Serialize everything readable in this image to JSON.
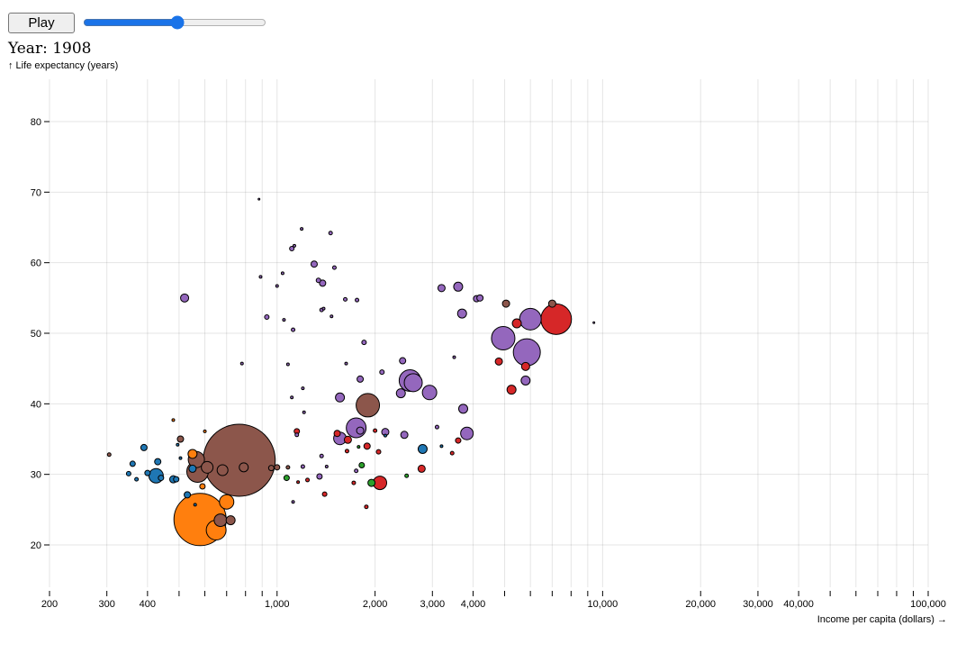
{
  "controls": {
    "play_label": "Play",
    "year_prefix": "Year: ",
    "year": 1908,
    "slider_min": 1800,
    "slider_max": 2009
  },
  "colors": {
    "region_1": "#1f77b4",
    "region_2": "#ff7f0e",
    "region_3": "#2ca02c",
    "region_4": "#d62728",
    "region_5": "#9467bd",
    "region_6": "#8c564b"
  },
  "chart_data": {
    "type": "scatter",
    "title": "",
    "xlabel": "Income per capita (dollars) →",
    "ylabel": "↑ Life expectancy (years)",
    "x_scale": "log",
    "xlim": [
      200,
      100000
    ],
    "ylim": [
      14,
      86
    ],
    "grid": true,
    "x_tick_labels": [
      {
        "value": 200,
        "label": "200"
      },
      {
        "value": 300,
        "label": "300"
      },
      {
        "value": 400,
        "label": "400"
      },
      {
        "value": 1000,
        "label": "1,000"
      },
      {
        "value": 2000,
        "label": "2,000"
      },
      {
        "value": 3000,
        "label": "3,000"
      },
      {
        "value": 4000,
        "label": "4,000"
      },
      {
        "value": 10000,
        "label": "10,000"
      },
      {
        "value": 20000,
        "label": "20,000"
      },
      {
        "value": 30000,
        "label": "30,000"
      },
      {
        "value": 40000,
        "label": "40,000"
      },
      {
        "value": 100000,
        "label": "100,000"
      }
    ],
    "y_tick_labels": [
      {
        "value": 20,
        "label": "20"
      },
      {
        "value": 30,
        "label": "30"
      },
      {
        "value": 40,
        "label": "40"
      },
      {
        "value": 50,
        "label": "50"
      },
      {
        "value": 60,
        "label": "60"
      },
      {
        "value": 70,
        "label": "70"
      },
      {
        "value": 80,
        "label": "80"
      }
    ],
    "points": [
      {
        "x": 765,
        "y": 32,
        "size": 40,
        "color": "#8c564b"
      },
      {
        "x": 580,
        "y": 23.6,
        "size": 29,
        "color": "#ff7f0e"
      },
      {
        "x": 7200,
        "y": 52,
        "size": 17,
        "color": "#d62728"
      },
      {
        "x": 5850,
        "y": 47.3,
        "size": 15,
        "color": "#9467bd"
      },
      {
        "x": 4950,
        "y": 49.3,
        "size": 13,
        "color": "#9467bd"
      },
      {
        "x": 1900,
        "y": 39.8,
        "size": 13,
        "color": "#8c564b"
      },
      {
        "x": 6000,
        "y": 52,
        "size": 12,
        "color": "#9467bd"
      },
      {
        "x": 2560,
        "y": 43.3,
        "size": 12,
        "color": "#9467bd"
      },
      {
        "x": 570,
        "y": 30.4,
        "size": 12,
        "color": "#8c564b"
      },
      {
        "x": 650,
        "y": 22.1,
        "size": 11,
        "color": "#ff7f0e"
      },
      {
        "x": 1750,
        "y": 36.6,
        "size": 11,
        "color": "#9467bd"
      },
      {
        "x": 2620,
        "y": 43,
        "size": 10,
        "color": "#9467bd"
      },
      {
        "x": 2940,
        "y": 41.6,
        "size": 8,
        "color": "#9467bd"
      },
      {
        "x": 565,
        "y": 32.1,
        "size": 9,
        "color": "#8c564b"
      },
      {
        "x": 700,
        "y": 26.1,
        "size": 8,
        "color": "#ff7f0e"
      },
      {
        "x": 425,
        "y": 29.8,
        "size": 8,
        "color": "#1f77b4"
      },
      {
        "x": 2070,
        "y": 28.8,
        "size": 7.5,
        "color": "#d62728"
      },
      {
        "x": 1560,
        "y": 35.1,
        "size": 7,
        "color": "#9467bd"
      },
      {
        "x": 3830,
        "y": 35.8,
        "size": 7,
        "color": "#9467bd"
      },
      {
        "x": 610,
        "y": 31,
        "size": 6.5,
        "color": "#8c564b"
      },
      {
        "x": 670,
        "y": 23.5,
        "size": 7,
        "color": "#8c564b"
      },
      {
        "x": 3700,
        "y": 52.8,
        "size": 5,
        "color": "#9467bd"
      },
      {
        "x": 4800,
        "y": 46,
        "size": 4,
        "color": "#d62728"
      },
      {
        "x": 680,
        "y": 30.6,
        "size": 6,
        "color": "#8c564b"
      },
      {
        "x": 5450,
        "y": 51.4,
        "size": 5,
        "color": "#d62728"
      },
      {
        "x": 5800,
        "y": 43.3,
        "size": 5,
        "color": "#9467bd"
      },
      {
        "x": 3730,
        "y": 39.3,
        "size": 5,
        "color": "#9467bd"
      },
      {
        "x": 1560,
        "y": 40.9,
        "size": 5,
        "color": "#9467bd"
      },
      {
        "x": 2400,
        "y": 41.5,
        "size": 5,
        "color": "#9467bd"
      },
      {
        "x": 550,
        "y": 32.9,
        "size": 5,
        "color": "#ff7f0e"
      },
      {
        "x": 790,
        "y": 31,
        "size": 5,
        "color": "#8c564b"
      },
      {
        "x": 720,
        "y": 23.5,
        "size": 5,
        "color": "#8c564b"
      },
      {
        "x": 4100,
        "y": 54.9,
        "size": 3.5,
        "color": "#9467bd"
      },
      {
        "x": 5250,
        "y": 42,
        "size": 5,
        "color": "#d62728"
      },
      {
        "x": 5800,
        "y": 45.3,
        "size": 4.5,
        "color": "#d62728"
      },
      {
        "x": 2800,
        "y": 33.6,
        "size": 5,
        "color": "#1f77b4"
      },
      {
        "x": 1800,
        "y": 36.2,
        "size": 4,
        "color": "#9467bd"
      },
      {
        "x": 3200,
        "y": 56.4,
        "size": 4,
        "color": "#9467bd"
      },
      {
        "x": 3600,
        "y": 56.6,
        "size": 5,
        "color": "#9467bd"
      },
      {
        "x": 4200,
        "y": 55,
        "size": 3.5,
        "color": "#9467bd"
      },
      {
        "x": 7000,
        "y": 54.2,
        "size": 4,
        "color": "#8c564b"
      },
      {
        "x": 5050,
        "y": 54.2,
        "size": 4,
        "color": "#8c564b"
      },
      {
        "x": 520,
        "y": 55,
        "size": 4.5,
        "color": "#9467bd"
      },
      {
        "x": 480,
        "y": 29.3,
        "size": 4,
        "color": "#1f77b4"
      },
      {
        "x": 390,
        "y": 33.8,
        "size": 3.5,
        "color": "#1f77b4"
      },
      {
        "x": 430,
        "y": 31.8,
        "size": 3.5,
        "color": "#1f77b4"
      },
      {
        "x": 2780,
        "y": 30.8,
        "size": 4,
        "color": "#d62728"
      },
      {
        "x": 1650,
        "y": 34.9,
        "size": 4,
        "color": "#d62728"
      },
      {
        "x": 1890,
        "y": 34,
        "size": 3.5,
        "color": "#d62728"
      },
      {
        "x": 1950,
        "y": 28.8,
        "size": 4,
        "color": "#2ca02c"
      },
      {
        "x": 1820,
        "y": 31.3,
        "size": 3,
        "color": "#2ca02c"
      },
      {
        "x": 2150,
        "y": 36,
        "size": 4,
        "color": "#9467bd"
      },
      {
        "x": 2460,
        "y": 35.6,
        "size": 4,
        "color": "#9467bd"
      },
      {
        "x": 2430,
        "y": 46.1,
        "size": 3.5,
        "color": "#9467bd"
      },
      {
        "x": 1800,
        "y": 43.5,
        "size": 3.5,
        "color": "#9467bd"
      },
      {
        "x": 960,
        "y": 30.9,
        "size": 3,
        "color": "#8c564b"
      },
      {
        "x": 1000,
        "y": 31,
        "size": 3,
        "color": "#8c564b"
      },
      {
        "x": 505,
        "y": 35,
        "size": 3.5,
        "color": "#8c564b"
      },
      {
        "x": 1070,
        "y": 29.5,
        "size": 3,
        "color": "#2ca02c"
      },
      {
        "x": 1150,
        "y": 36.1,
        "size": 3,
        "color": "#d62728"
      },
      {
        "x": 1350,
        "y": 29.7,
        "size": 3,
        "color": "#9467bd"
      },
      {
        "x": 1400,
        "y": 27.2,
        "size": 2.5,
        "color": "#d62728"
      },
      {
        "x": 1300,
        "y": 59.8,
        "size": 3.5,
        "color": "#9467bd"
      },
      {
        "x": 1380,
        "y": 57.1,
        "size": 3.5,
        "color": "#9467bd"
      },
      {
        "x": 1340,
        "y": 57.5,
        "size": 2.5,
        "color": "#9467bd"
      },
      {
        "x": 930,
        "y": 52.3,
        "size": 2.5,
        "color": "#9467bd"
      },
      {
        "x": 1120,
        "y": 50.5,
        "size": 2,
        "color": "#9467bd"
      },
      {
        "x": 1850,
        "y": 48.7,
        "size": 2.5,
        "color": "#9467bd"
      },
      {
        "x": 2100,
        "y": 44.5,
        "size": 2.5,
        "color": "#9467bd"
      },
      {
        "x": 1530,
        "y": 35.8,
        "size": 3.5,
        "color": "#d62728"
      },
      {
        "x": 2000,
        "y": 36.2,
        "size": 2,
        "color": "#d62728"
      },
      {
        "x": 2050,
        "y": 33.2,
        "size": 2.5,
        "color": "#d62728"
      },
      {
        "x": 1640,
        "y": 33.3,
        "size": 2,
        "color": "#d62728"
      },
      {
        "x": 1880,
        "y": 25.4,
        "size": 2,
        "color": "#d62728"
      },
      {
        "x": 3600,
        "y": 34.8,
        "size": 3,
        "color": "#d62728"
      },
      {
        "x": 1720,
        "y": 28.8,
        "size": 2,
        "color": "#d62728"
      },
      {
        "x": 1240,
        "y": 29.2,
        "size": 2,
        "color": "#d62728"
      },
      {
        "x": 3100,
        "y": 36.7,
        "size": 2,
        "color": "#9467bd"
      },
      {
        "x": 1750,
        "y": 30.5,
        "size": 2,
        "color": "#9467bd"
      },
      {
        "x": 3450,
        "y": 33,
        "size": 2,
        "color": "#d62728"
      },
      {
        "x": 2500,
        "y": 29.8,
        "size": 2,
        "color": "#2ca02c"
      },
      {
        "x": 590,
        "y": 28.3,
        "size": 3,
        "color": "#ff7f0e"
      },
      {
        "x": 530,
        "y": 27.1,
        "size": 3.5,
        "color": "#1f77b4"
      },
      {
        "x": 550,
        "y": 30.8,
        "size": 4,
        "color": "#1f77b4"
      },
      {
        "x": 490,
        "y": 29.3,
        "size": 3,
        "color": "#1f77b4"
      },
      {
        "x": 400,
        "y": 30.2,
        "size": 3,
        "color": "#1f77b4"
      },
      {
        "x": 360,
        "y": 31.5,
        "size": 3,
        "color": "#1f77b4"
      },
      {
        "x": 350,
        "y": 30.1,
        "size": 2.5,
        "color": "#1f77b4"
      },
      {
        "x": 370,
        "y": 29.3,
        "size": 2,
        "color": "#1f77b4"
      },
      {
        "x": 440,
        "y": 29.5,
        "size": 3,
        "color": "#1f77b4"
      },
      {
        "x": 305,
        "y": 32.8,
        "size": 2,
        "color": "#8c564b"
      },
      {
        "x": 880,
        "y": 69,
        "size": 1,
        "color": "#9467bd"
      },
      {
        "x": 1190,
        "y": 64.8,
        "size": 1.5,
        "color": "#9467bd"
      },
      {
        "x": 1460,
        "y": 64.2,
        "size": 2,
        "color": "#9467bd"
      },
      {
        "x": 1110,
        "y": 62,
        "size": 2.5,
        "color": "#9467bd"
      },
      {
        "x": 1130,
        "y": 62.4,
        "size": 1.5,
        "color": "#9467bd"
      },
      {
        "x": 1500,
        "y": 59.3,
        "size": 2,
        "color": "#9467bd"
      },
      {
        "x": 1040,
        "y": 58.5,
        "size": 1.5,
        "color": "#9467bd"
      },
      {
        "x": 890,
        "y": 58,
        "size": 1.5,
        "color": "#9467bd"
      },
      {
        "x": 1000,
        "y": 56.7,
        "size": 1.5,
        "color": "#9467bd"
      },
      {
        "x": 1390,
        "y": 53.5,
        "size": 1.5,
        "color": "#9467bd"
      },
      {
        "x": 1620,
        "y": 54.8,
        "size": 2,
        "color": "#9467bd"
      },
      {
        "x": 1760,
        "y": 54.7,
        "size": 2,
        "color": "#9467bd"
      },
      {
        "x": 1370,
        "y": 53.3,
        "size": 2,
        "color": "#9467bd"
      },
      {
        "x": 1470,
        "y": 52.4,
        "size": 1.5,
        "color": "#9467bd"
      },
      {
        "x": 1050,
        "y": 51.9,
        "size": 1.5,
        "color": "#9467bd"
      },
      {
        "x": 9400,
        "y": 51.5,
        "size": 1,
        "color": "#9467bd"
      },
      {
        "x": 780,
        "y": 45.7,
        "size": 1.5,
        "color": "#9467bd"
      },
      {
        "x": 1080,
        "y": 45.6,
        "size": 1.5,
        "color": "#9467bd"
      },
      {
        "x": 1630,
        "y": 45.7,
        "size": 1.5,
        "color": "#9467bd"
      },
      {
        "x": 1200,
        "y": 42.2,
        "size": 1.5,
        "color": "#9467bd"
      },
      {
        "x": 1110,
        "y": 40.9,
        "size": 1.5,
        "color": "#9467bd"
      },
      {
        "x": 3500,
        "y": 46.6,
        "size": 1.5,
        "color": "#9467bd"
      },
      {
        "x": 1210,
        "y": 38.8,
        "size": 1.5,
        "color": "#9467bd"
      },
      {
        "x": 1150,
        "y": 35.6,
        "size": 2,
        "color": "#9467bd"
      },
      {
        "x": 1370,
        "y": 32.6,
        "size": 2,
        "color": "#9467bd"
      },
      {
        "x": 1200,
        "y": 31.1,
        "size": 2,
        "color": "#9467bd"
      },
      {
        "x": 1080,
        "y": 31,
        "size": 2,
        "color": "#8c564b"
      },
      {
        "x": 1160,
        "y": 28.9,
        "size": 1.5,
        "color": "#d62728"
      },
      {
        "x": 1120,
        "y": 26.1,
        "size": 1.5,
        "color": "#9467bd"
      },
      {
        "x": 1420,
        "y": 31.1,
        "size": 1.5,
        "color": "#9467bd"
      },
      {
        "x": 480,
        "y": 37.7,
        "size": 1.5,
        "color": "#ff7f0e"
      },
      {
        "x": 495,
        "y": 34.2,
        "size": 1.5,
        "color": "#1f77b4"
      },
      {
        "x": 600,
        "y": 36.1,
        "size": 1.5,
        "color": "#ff7f0e"
      },
      {
        "x": 560,
        "y": 25.7,
        "size": 1.5,
        "color": "#1f77b4"
      },
      {
        "x": 505,
        "y": 32.3,
        "size": 1.5,
        "color": "#1f77b4"
      },
      {
        "x": 1780,
        "y": 33.9,
        "size": 1.5,
        "color": "#2ca02c"
      },
      {
        "x": 2150,
        "y": 35.5,
        "size": 1.5,
        "color": "#1f77b4"
      },
      {
        "x": 3200,
        "y": 34,
        "size": 1.5,
        "color": "#1f77b4"
      }
    ]
  }
}
